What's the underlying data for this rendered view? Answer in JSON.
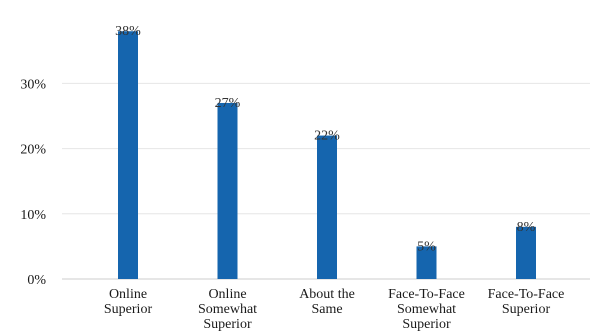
{
  "chart_data": {
    "type": "bar",
    "categories": [
      "Online Superior",
      "Online Somewhat Superior",
      "About the Same",
      "Face-To-Face Somewhat Superior",
      "Face-To-Face Superior"
    ],
    "category_lines": [
      [
        "Online",
        "Superior"
      ],
      [
        "Online",
        "Somewhat",
        "Superior"
      ],
      [
        "About the",
        "Same"
      ],
      [
        "Face-To-Face",
        "Somewhat",
        "Superior"
      ],
      [
        "Face-To-Face",
        "Superior"
      ]
    ],
    "values": [
      38,
      27,
      22,
      5,
      8
    ],
    "data_labels": [
      "38%",
      "27%",
      "22%",
      "5%",
      "8%"
    ],
    "yticks": [
      0,
      10,
      20,
      30
    ],
    "ytick_labels": [
      "0%",
      "10%",
      "20%",
      "30%"
    ],
    "ylim": [
      0,
      40
    ],
    "title": "",
    "xlabel": "",
    "ylabel": "",
    "grid": "horizontal",
    "bar_color": "#1565ae",
    "grid_color": "#e6e6e6"
  }
}
